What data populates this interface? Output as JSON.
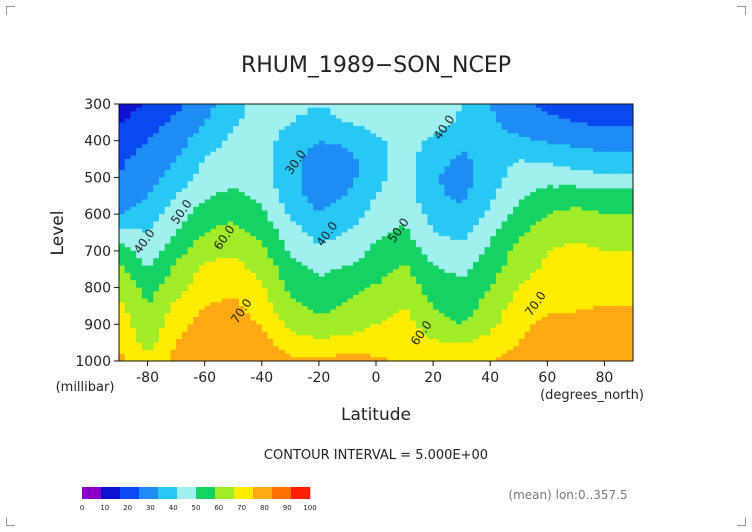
{
  "chart_data": {
    "type": "heatmap",
    "title": "RHUM_1989−SON_NCEP",
    "xlabel": "Latitude",
    "ylabel": "Level",
    "xunit": "(degrees_north)",
    "yunit": "(millibar)",
    "xlim": [
      -90,
      90
    ],
    "ylim": [
      1000,
      300
    ],
    "xticks": [
      -80,
      -60,
      -40,
      -20,
      0,
      20,
      40,
      60,
      80
    ],
    "yticks": [
      300,
      400,
      500,
      600,
      700,
      800,
      900,
      1000
    ],
    "contour_interval_text": "CONTOUR INTERVAL = 5.000E+00",
    "subtitle": "(mean) lon:0..357.5",
    "contour_labels": [
      {
        "text": "30.0",
        "lat": -27,
        "lev": 465
      },
      {
        "text": "40.0",
        "lat": 25,
        "lev": 370
      },
      {
        "text": "40.0",
        "lat": -80,
        "lev": 680
      },
      {
        "text": "50.0",
        "lat": -67,
        "lev": 600
      },
      {
        "text": "40.0",
        "lat": -16,
        "lev": 660
      },
      {
        "text": "50.0",
        "lat": 9,
        "lev": 650
      },
      {
        "text": "60.0",
        "lat": -52,
        "lev": 670
      },
      {
        "text": "70.0",
        "lat": -46,
        "lev": 870
      },
      {
        "text": "70.0",
        "lat": 57,
        "lev": 850
      },
      {
        "text": "60.0",
        "lat": 17,
        "lev": 930
      }
    ],
    "colorbar": {
      "levels": [
        0,
        10,
        20,
        30,
        40,
        50,
        60,
        70,
        80,
        90,
        100
      ],
      "colors": [
        "#8b00c8",
        "#1010d2",
        "#0a48f0",
        "#1f8cf5",
        "#28c8f5",
        "#a0f0f0",
        "#14d264",
        "#a0ec28",
        "#ffec00",
        "#ffaa14",
        "#ff6e00",
        "#ff1e00"
      ]
    },
    "grid": {
      "lats": [
        -90,
        -80,
        -70,
        -60,
        -50,
        -40,
        -30,
        -20,
        -10,
        0,
        10,
        20,
        30,
        40,
        50,
        60,
        70,
        80,
        90
      ],
      "levels": [
        300,
        350,
        400,
        450,
        500,
        550,
        600,
        650,
        700,
        750,
        800,
        850,
        900,
        950,
        1000
      ],
      "values": [
        [
          5,
          11,
          18,
          26,
          36,
          44,
          42,
          40,
          42,
          45,
          48,
          46,
          40,
          30,
          22,
          18,
          16,
          15,
          15
        ],
        [
          9,
          16,
          22,
          30,
          39,
          44,
          40,
          38,
          40,
          44,
          47,
          44,
          38,
          32,
          25,
          22,
          20,
          18,
          18
        ],
        [
          14,
          20,
          26,
          35,
          42,
          44,
          36,
          30,
          32,
          38,
          44,
          38,
          33,
          34,
          32,
          29,
          27,
          25,
          25
        ],
        [
          18,
          24,
          30,
          40,
          46,
          44,
          33,
          26,
          27,
          36,
          44,
          34,
          28,
          34,
          40,
          38,
          35,
          33,
          33
        ],
        [
          20,
          26,
          34,
          44,
          48,
          45,
          32,
          25,
          27,
          37,
          45,
          31,
          26,
          35,
          45,
          46,
          44,
          42,
          42
        ],
        [
          23,
          30,
          40,
          49,
          52,
          48,
          34,
          26,
          30,
          40,
          46,
          32,
          28,
          38,
          48,
          54,
          56,
          55,
          55
        ],
        [
          30,
          35,
          45,
          55,
          58,
          52,
          39,
          30,
          34,
          44,
          48,
          36,
          32,
          42,
          53,
          60,
          62,
          60,
          60
        ],
        [
          44,
          40,
          50,
          60,
          63,
          57,
          44,
          36,
          40,
          48,
          52,
          40,
          37,
          48,
          58,
          66,
          68,
          66,
          66
        ],
        [
          56,
          44,
          56,
          66,
          68,
          62,
          49,
          42,
          45,
          52,
          57,
          46,
          43,
          52,
          63,
          70,
          72,
          70,
          70
        ],
        [
          62,
          50,
          62,
          72,
          74,
          67,
          54,
          48,
          51,
          56,
          62,
          51,
          48,
          56,
          66,
          72,
          74,
          73,
          73
        ],
        [
          68,
          56,
          66,
          76,
          78,
          71,
          58,
          53,
          57,
          61,
          65,
          56,
          52,
          60,
          70,
          75,
          76,
          76,
          76
        ],
        [
          72,
          60,
          72,
          80,
          82,
          75,
          62,
          57,
          61,
          65,
          70,
          60,
          55,
          64,
          74,
          78,
          79,
          80,
          80
        ],
        [
          76,
          63,
          76,
          84,
          86,
          79,
          67,
          63,
          66,
          70,
          74,
          64,
          60,
          67,
          78,
          82,
          82,
          84,
          84
        ],
        [
          80,
          66,
          80,
          88,
          88,
          84,
          74,
          72,
          73,
          75,
          76,
          71,
          69,
          74,
          80,
          84,
          86,
          88,
          88
        ],
        [
          82,
          72,
          84,
          90,
          90,
          88,
          82,
          82,
          84,
          82,
          78,
          77,
          79,
          80,
          84,
          86,
          88,
          89,
          89
        ]
      ]
    }
  }
}
